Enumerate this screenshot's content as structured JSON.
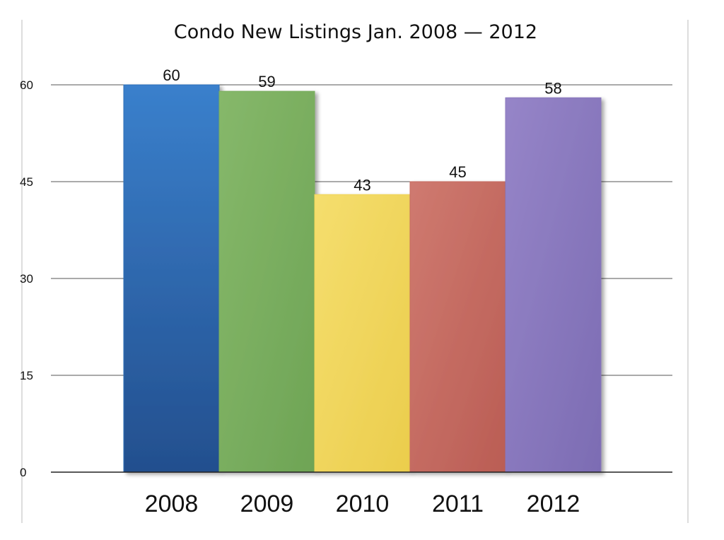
{
  "chart_data": {
    "type": "bar",
    "title": "Condo New Listings Jan. 2008 — 2012",
    "categories": [
      "2008",
      "2009",
      "2010",
      "2011",
      "2012"
    ],
    "values": [
      60,
      59,
      43,
      45,
      58
    ],
    "data_labels": [
      "60",
      "59",
      "43",
      "45",
      "58"
    ],
    "bar_colors": [
      "#2d6fb8",
      "#7aae5e",
      "#f0d55a",
      "#c66a60",
      "#8a78bd"
    ],
    "yticks": [
      0,
      15,
      30,
      45,
      60
    ],
    "ylim": [
      0,
      60
    ],
    "grid": true,
    "legend": "none",
    "xlabel": "",
    "ylabel": ""
  }
}
